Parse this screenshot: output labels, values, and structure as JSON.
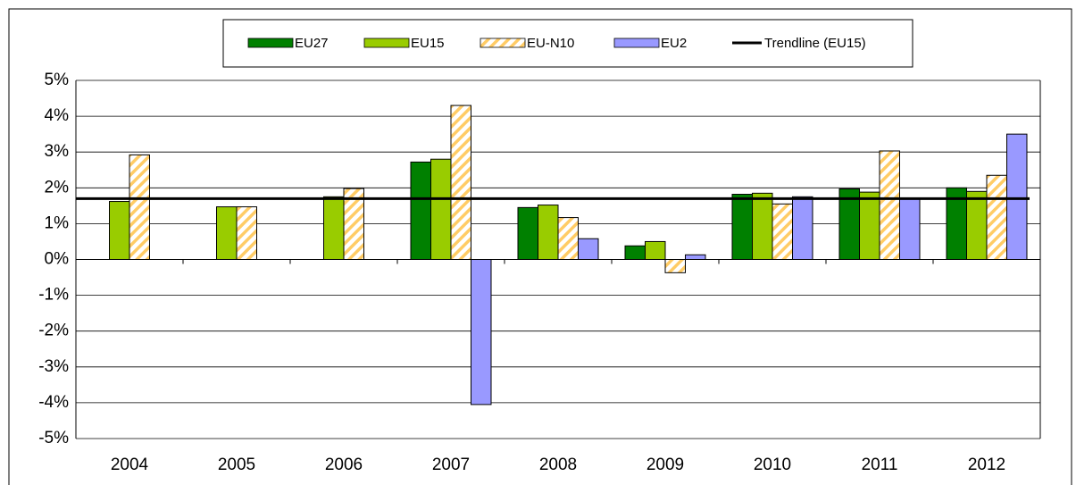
{
  "chart_data": {
    "type": "bar",
    "categories": [
      "2004",
      "2005",
      "2006",
      "2007",
      "2008",
      "2009",
      "2010",
      "2011",
      "2012"
    ],
    "series": [
      {
        "name": "EU27",
        "color": "#008000",
        "values": [
          null,
          null,
          null,
          2.72,
          1.45,
          0.38,
          1.82,
          1.97,
          2.0
        ]
      },
      {
        "name": "EU15",
        "color": "#99cc00",
        "values": [
          1.62,
          1.47,
          1.75,
          2.8,
          1.52,
          0.5,
          1.85,
          1.88,
          1.9
        ]
      },
      {
        "name": "EU-N10",
        "color": "#ffcc66",
        "hatched": true,
        "values": [
          2.92,
          1.47,
          1.98,
          4.3,
          1.17,
          -0.37,
          1.55,
          3.03,
          2.35
        ]
      },
      {
        "name": "EU2",
        "color": "#9999ff",
        "values": [
          null,
          null,
          null,
          -4.05,
          0.58,
          0.13,
          1.75,
          1.7,
          3.5
        ]
      },
      {
        "name": "Trendline (EU15)",
        "color": "#000000",
        "type": "line",
        "values": [
          1.7,
          1.7,
          1.7,
          1.7,
          1.7,
          1.7,
          1.7,
          1.7,
          1.7
        ]
      }
    ],
    "ylim": [
      -5,
      5
    ],
    "yticks": [
      {
        "value": -5,
        "label": "-5%"
      },
      {
        "value": -4,
        "label": "-4%"
      },
      {
        "value": -3,
        "label": "-3%"
      },
      {
        "value": -2,
        "label": "-2%"
      },
      {
        "value": -1,
        "label": "-1%"
      },
      {
        "value": 0,
        "label": "0%"
      },
      {
        "value": 1,
        "label": "1%"
      },
      {
        "value": 2,
        "label": "2%"
      },
      {
        "value": 3,
        "label": "3%"
      },
      {
        "value": 4,
        "label": "4%"
      },
      {
        "value": 5,
        "label": "5%"
      }
    ],
    "grid": true,
    "legend": "top"
  }
}
